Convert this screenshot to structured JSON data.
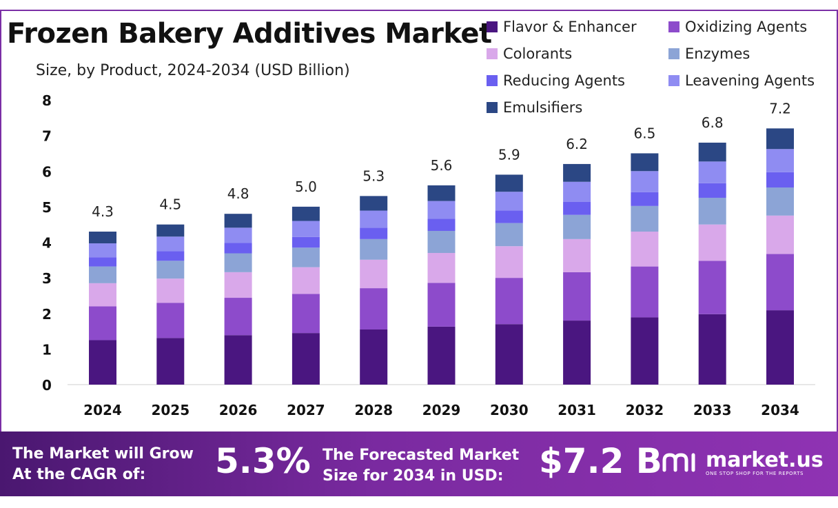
{
  "header": {
    "title": "Frozen Bakery Additives Market",
    "subtitle": "Size, by Product, 2024-2034 (USD Billion)"
  },
  "chart_data": {
    "type": "bar",
    "stacked": true,
    "title": "Frozen Bakery Additives Market",
    "subtitle": "Size, by Product, 2024-2034 (USD Billion)",
    "xlabel": "",
    "ylabel": "",
    "ylim": [
      0,
      8
    ],
    "yticks": [
      0,
      1,
      2,
      3,
      4,
      5,
      6,
      7,
      8
    ],
    "grid": false,
    "legend_position": "top-right",
    "categories": [
      "2024",
      "2025",
      "2026",
      "2027",
      "2028",
      "2029",
      "2030",
      "2031",
      "2032",
      "2033",
      "2034"
    ],
    "totals": [
      4.3,
      4.5,
      4.8,
      5.0,
      5.3,
      5.6,
      5.9,
      6.2,
      6.5,
      6.8,
      7.2
    ],
    "total_labels": [
      "4.3",
      "4.5",
      "4.8",
      "5.0",
      "5.3",
      "5.6",
      "5.9",
      "6.2",
      "6.5",
      "6.8",
      "7.2"
    ],
    "series": [
      {
        "name": "Flavor & Enhancer",
        "color": "#4a1680",
        "values": [
          1.25,
          1.31,
          1.39,
          1.45,
          1.55,
          1.63,
          1.7,
          1.8,
          1.89,
          1.98,
          2.09
        ]
      },
      {
        "name": "Oxidizing Agents",
        "color": "#8d4bcb",
        "values": [
          0.95,
          0.99,
          1.05,
          1.1,
          1.16,
          1.23,
          1.3,
          1.36,
          1.43,
          1.5,
          1.58
        ]
      },
      {
        "name": "Colorants",
        "color": "#d9a8ea",
        "values": [
          0.65,
          0.68,
          0.72,
          0.75,
          0.8,
          0.84,
          0.89,
          0.93,
          0.98,
          1.02,
          1.08
        ]
      },
      {
        "name": "Enzymes",
        "color": "#8ca4d6",
        "values": [
          0.47,
          0.5,
          0.53,
          0.55,
          0.58,
          0.62,
          0.65,
          0.68,
          0.72,
          0.75,
          0.79
        ]
      },
      {
        "name": "Reducing Agents",
        "color": "#6a5ff0",
        "values": [
          0.26,
          0.27,
          0.29,
          0.3,
          0.32,
          0.34,
          0.35,
          0.37,
          0.39,
          0.41,
          0.43
        ]
      },
      {
        "name": "Leavening Agents",
        "color": "#8f8cf2",
        "values": [
          0.39,
          0.41,
          0.43,
          0.45,
          0.48,
          0.5,
          0.53,
          0.56,
          0.59,
          0.61,
          0.65
        ]
      },
      {
        "name": "Emulsifiers",
        "color": "#2b4784",
        "values": [
          0.33,
          0.34,
          0.39,
          0.4,
          0.41,
          0.44,
          0.48,
          0.5,
          0.5,
          0.53,
          0.58
        ]
      }
    ]
  },
  "banner": {
    "cagr_label_line1": "The Market will Grow",
    "cagr_label_line2": "At the CAGR of:",
    "cagr_value": "5.3%",
    "forecast_label_line1": "The Forecasted Market",
    "forecast_label_line2": "Size for 2034 in USD:",
    "forecast_value": "$7.2 B",
    "brand_name": "market.us",
    "brand_tagline": "ONE STOP SHOP FOR THE REPORTS"
  },
  "colors": {
    "frame": "#7b2fa6",
    "banner_start": "#4a1770",
    "banner_end": "#8f33b3"
  }
}
